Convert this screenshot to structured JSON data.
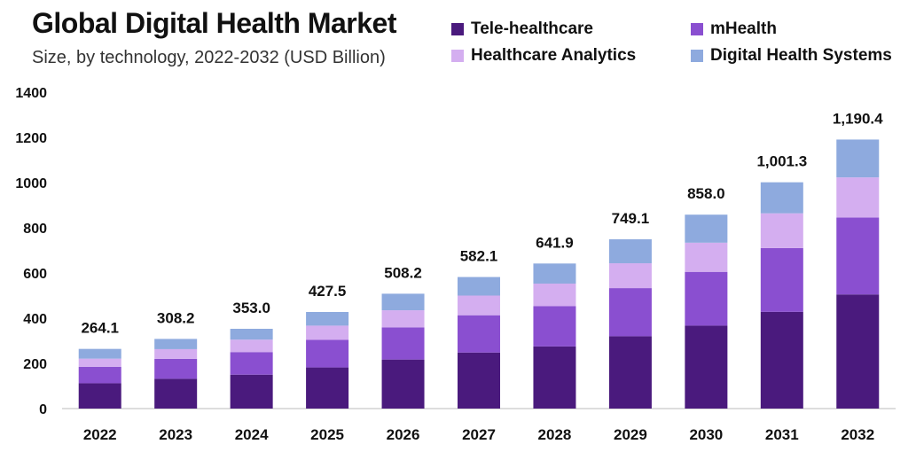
{
  "header": {
    "title": "Global Digital Health Market",
    "subtitle": "Size, by technology, 2022-2032 (USD Billion)"
  },
  "colors": {
    "tele_healthcare": "#4a1a7d",
    "mhealth": "#8a4fd0",
    "healthcare_analytics": "#d4aef0",
    "digital_health_systems": "#8eaade"
  },
  "chart_data": {
    "type": "bar",
    "stacked": true,
    "title": "Global Digital Health Market",
    "subtitle": "Size, by technology, 2022-2032 (USD Billion)",
    "xlabel": "",
    "ylabel": "",
    "ylim": [
      0,
      1400
    ],
    "yticks": [
      0,
      200,
      400,
      600,
      800,
      1000,
      1200,
      1400
    ],
    "grid": false,
    "legend_position": "top-right",
    "categories": [
      "2022",
      "2023",
      "2024",
      "2025",
      "2026",
      "2027",
      "2028",
      "2029",
      "2030",
      "2031",
      "2032"
    ],
    "series": [
      {
        "name": "Tele-healthcare",
        "color": "#4a1a7d",
        "values": [
          112,
          132,
          150,
          182,
          217,
          248,
          275,
          320,
          367,
          428,
          505
        ]
      },
      {
        "name": "mHealth",
        "color": "#8a4fd0",
        "values": [
          73,
          88,
          100,
          122,
          142,
          165,
          178,
          213,
          238,
          282,
          340
        ]
      },
      {
        "name": "Healthcare Analytics",
        "color": "#d4aef0",
        "values": [
          36,
          43,
          55,
          63,
          76,
          87,
          100,
          110,
          129,
          154,
          178
        ]
      },
      {
        "name": "Digital Health Systems",
        "color": "#8eaade",
        "values": [
          43.1,
          45.2,
          48.0,
          60.5,
          73.2,
          82.1,
          88.9,
          106.1,
          124.0,
          137.3,
          167.4
        ]
      }
    ],
    "totals": [
      264.1,
      308.2,
      353.0,
      427.5,
      508.2,
      582.1,
      641.9,
      749.1,
      858.0,
      1001.3,
      1190.4
    ],
    "total_labels": [
      "264.1",
      "308.2",
      "353.0",
      "427.5",
      "508.2",
      "582.1",
      "641.9",
      "749.1",
      "858.0",
      "1,001.3",
      "1,190.4"
    ]
  }
}
